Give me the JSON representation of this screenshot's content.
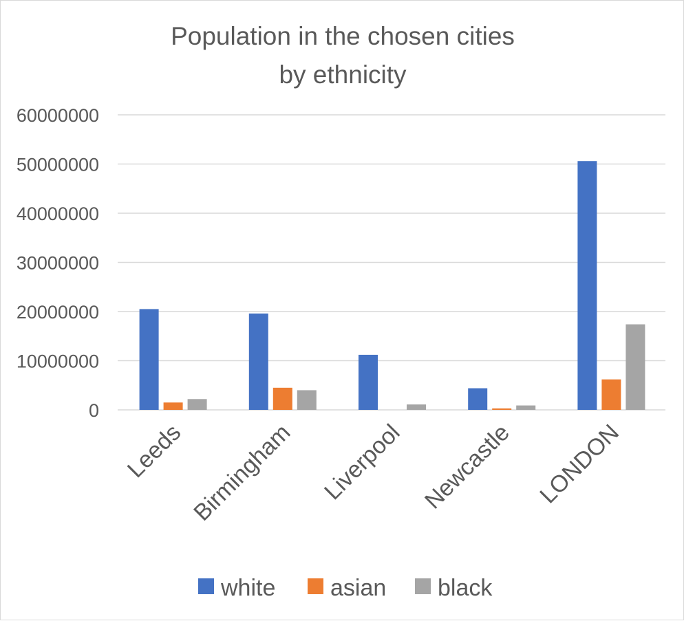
{
  "chart_data": {
    "type": "bar",
    "title": "Population in the chosen cities by ethnicity",
    "title_lines": [
      "Population in the chosen cities",
      "by ethnicity"
    ],
    "xlabel": "",
    "ylabel": "",
    "categories": [
      "Leeds",
      "Birmingham",
      "Liverpool",
      "Newcastle",
      "LONDON"
    ],
    "series": [
      {
        "name": "white",
        "color": "#4472c4",
        "values": [
          20500000,
          19600000,
          11200000,
          4400000,
          50600000
        ]
      },
      {
        "name": "asian",
        "color": "#ed7d31",
        "values": [
          1500000,
          4500000,
          0,
          300000,
          6200000
        ]
      },
      {
        "name": "black",
        "color": "#a5a5a5",
        "values": [
          2200000,
          4000000,
          1100000,
          900000,
          17400000
        ]
      }
    ],
    "ylim": [
      0,
      60000000
    ],
    "yticks": [
      "0",
      "10000000",
      "20000000",
      "30000000",
      "40000000",
      "50000000",
      "60000000"
    ],
    "grid": true,
    "legend": "bottom"
  }
}
